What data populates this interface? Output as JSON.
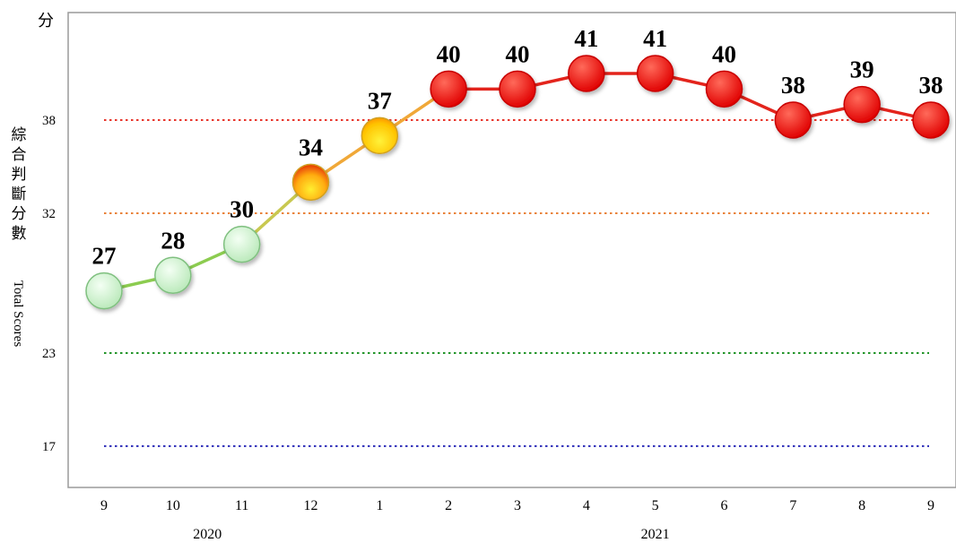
{
  "labels": {
    "unit": "分",
    "y_title_zh": "綜合判斷分數",
    "y_title_en": "Total Scores"
  },
  "chart_data": {
    "type": "line",
    "categories": [
      "9",
      "10",
      "11",
      "12",
      "1",
      "2",
      "3",
      "4",
      "5",
      "6",
      "7",
      "8",
      "9"
    ],
    "year_labels": [
      {
        "text": "2020",
        "span": [
          0,
          3
        ]
      },
      {
        "text": "2021",
        "span": [
          4,
          12
        ]
      }
    ],
    "series": [
      {
        "values": [
          27,
          28,
          30,
          34,
          37,
          40,
          40,
          41,
          41,
          40,
          38,
          39,
          38
        ]
      }
    ],
    "y_ticks": [
      17,
      23,
      32,
      38
    ],
    "ylim": [
      14,
      45
    ],
    "threshold_lines": [
      {
        "value": 38,
        "color": "#e8352b"
      },
      {
        "value": 32,
        "color": "#e9823a"
      },
      {
        "value": 23,
        "color": "#23952a"
      },
      {
        "value": 17,
        "color": "#2b2bb8"
      }
    ],
    "signal_colors": {
      "green": "#c6f0c6",
      "yellow_red": "#f6b23a",
      "yellow": "#f6d21c",
      "red": "#ff1010"
    },
    "point_signals": [
      "green",
      "green",
      "green",
      "yellow_red",
      "yellow",
      "red",
      "red",
      "red",
      "red",
      "red",
      "red",
      "red",
      "red"
    ],
    "grid": false,
    "legend": "none"
  }
}
